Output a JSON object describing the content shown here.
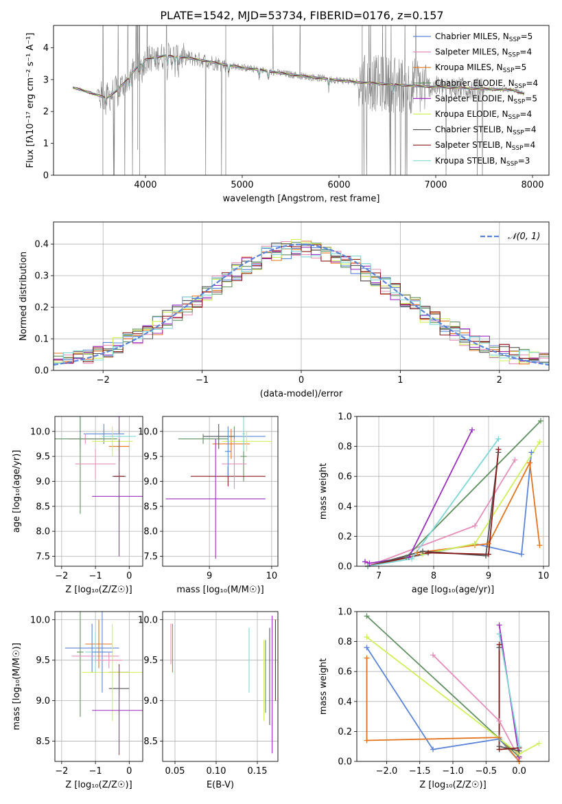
{
  "title": "PLATE=1542, MJD=53734, FIBERID=0176, z=0.157",
  "colors": {
    "Chabrier MILES": "#5b84d8",
    "Salpeter MILES": "#e58fb8",
    "Kroupa MILES": "#e3731d",
    "Chabrier ELODIE": "#5f8f5f",
    "Salpeter ELODIE": "#9b2dbf",
    "Kroupa ELODIE": "#cff05a",
    "Chabrier STELIB": "#555555",
    "Salpeter STELIB": "#8b1a1a",
    "Kroupa STELIB": "#7fd6d6",
    "data": "#808080",
    "normal": "#5b84d8"
  },
  "chart_data": [
    {
      "type": "line",
      "xlabel": "wavelength [Angstrom, rest frame]",
      "ylabel": "Flux [fλ10⁻¹⁷ erg cm⁻² s⁻¹ A⁻¹]",
      "xlim": [
        3050,
        8170
      ],
      "ylim": [
        0,
        4.7
      ],
      "xticks": [
        "4000",
        "5000",
        "6000",
        "7000",
        "8000"
      ],
      "yticks": [
        "0",
        "1",
        "2",
        "3",
        "4"
      ],
      "legend_position": "top-right",
      "legend": [
        "Chabrier MILES, N_SSP=5",
        "Salpeter MILES, N_SSP=4",
        "Kroupa MILES, N_SSP=5",
        "Chabrier ELODIE, N_SSP=4",
        "Salpeter ELODIE, N_SSP=5",
        "Kroupa ELODIE, N_SSP=4",
        "Chabrier STELIB, N_SSP=4",
        "Salpeter STELIB, N_SSP=4",
        "Kroupa STELIB, N_SSP=3"
      ],
      "continuum": {
        "x": [
          3250,
          3400,
          3520,
          3600,
          3700,
          3800,
          3900,
          4000,
          4100,
          4200,
          4400,
          4600,
          4800,
          5000,
          5200,
          5400,
          5600,
          5800,
          6000,
          6200,
          6400,
          6600,
          6800,
          7000,
          7200,
          7400,
          7600,
          7800,
          7920
        ],
        "y": [
          2.75,
          2.62,
          2.5,
          2.42,
          2.65,
          2.95,
          3.35,
          3.62,
          3.7,
          3.75,
          3.7,
          3.6,
          3.48,
          3.38,
          3.3,
          3.2,
          3.12,
          3.05,
          2.98,
          2.92,
          2.88,
          2.84,
          2.8,
          2.77,
          2.75,
          2.72,
          2.7,
          2.67,
          2.55
        ]
      },
      "absorption_lines": [
        3590,
        3720,
        3835,
        3934,
        3969,
        4102,
        4227,
        4304,
        4341,
        4861,
        5175,
        5270,
        5894,
        6563
      ]
    },
    {
      "type": "bar",
      "xlabel": "(data-model)/error",
      "ylabel": "Normed distribution",
      "xlim": [
        -2.5,
        2.5
      ],
      "ylim": [
        0,
        0.47
      ],
      "xticks": [
        "−2",
        "−1",
        "0",
        "1",
        "2"
      ],
      "yticks": [
        "0.0",
        "0.1",
        "0.2",
        "0.3",
        "0.4"
      ],
      "bin_width": 0.1,
      "reference_curve": "N(0,1)",
      "legend": [
        "𝒩(0, 1)"
      ],
      "legend_position": "top-right"
    },
    {
      "type": "scatter",
      "xlabel": "Z [log₁₀(Z/Z☉)]",
      "ylabel": "age  [log₁₀(age/yr)]",
      "xlim": [
        -2.2,
        0.4
      ],
      "ylim": [
        7.3,
        10.3
      ],
      "xticks": [
        "−2",
        "−1",
        "0"
      ],
      "yticks": [
        "7.5",
        "8.0",
        "8.5",
        "9.0",
        "9.5",
        "10.0"
      ]
    },
    {
      "type": "scatter",
      "xlabel": "mass [log₁₀(M/M☉)]",
      "ylabel": "",
      "xlim": [
        8.25,
        10.1
      ],
      "ylim": [
        7.3,
        10.3
      ],
      "xticks": [
        "9",
        "10"
      ],
      "yticks": [
        "7.5",
        "8.0",
        "8.5",
        "9.0",
        "9.5",
        "10.0"
      ]
    },
    {
      "type": "line",
      "xlabel": "age  [log₁₀(age/yr)]",
      "ylabel": "mass weight",
      "xlim": [
        6.6,
        10.1
      ],
      "ylim": [
        0,
        1.0
      ],
      "xticks": [
        "7",
        "8",
        "9",
        "10"
      ],
      "yticks": [
        "0.0",
        "0.2",
        "0.4",
        "0.6",
        "0.8",
        "1.0"
      ],
      "series": [
        {
          "name": "Chabrier MILES",
          "x": [
            6.8,
            8.75,
            9.6,
            9.78
          ],
          "y": [
            0.0,
            0.15,
            0.08,
            0.76
          ]
        },
        {
          "name": "Salpeter MILES",
          "x": [
            6.8,
            8.75,
            9.48
          ],
          "y": [
            0.0,
            0.27,
            0.71
          ]
        },
        {
          "name": "Kroupa MILES",
          "x": [
            6.8,
            7.7,
            8.75,
            9.0,
            9.75,
            9.93
          ],
          "y": [
            0.0,
            0.09,
            0.14,
            0.15,
            0.69,
            0.14
          ]
        },
        {
          "name": "Chabrier ELODIE",
          "x": [
            6.8,
            7.5,
            9.95
          ],
          "y": [
            0.0,
            0.06,
            0.97
          ]
        },
        {
          "name": "Salpeter ELODIE",
          "x": [
            6.75,
            6.83,
            7.55,
            8.7
          ],
          "y": [
            0.03,
            0.02,
            0.06,
            0.91
          ]
        },
        {
          "name": "Kroupa ELODIE",
          "x": [
            6.8,
            7.8,
            8.75,
            9.93
          ],
          "y": [
            0.0,
            0.08,
            0.15,
            0.83
          ]
        },
        {
          "name": "Chabrier STELIB",
          "x": [
            6.8,
            7.8,
            8.95,
            9.18
          ],
          "y": [
            0.0,
            0.1,
            0.07,
            0.76
          ]
        },
        {
          "name": "Salpeter STELIB",
          "x": [
            6.8,
            7.9,
            9.0,
            9.18
          ],
          "y": [
            0.0,
            0.09,
            0.08,
            0.78
          ]
        },
        {
          "name": "Kroupa STELIB",
          "x": [
            6.8,
            7.6,
            9.18
          ],
          "y": [
            0.0,
            0.05,
            0.85
          ]
        }
      ]
    },
    {
      "type": "scatter",
      "xlabel": "Z [log₁₀(Z/Z☉)]",
      "ylabel": "mass [log₁₀(M/M☉)]",
      "xlim": [
        -2.2,
        0.4
      ],
      "ylim": [
        8.25,
        10.1
      ],
      "xticks": [
        "−2",
        "−1",
        "0"
      ],
      "yticks": [
        "8.5",
        "9.0",
        "9.5",
        "10.0"
      ]
    },
    {
      "type": "scatter",
      "xlabel": "E(B-V)",
      "ylabel": "",
      "xlim": [
        0.035,
        0.175
      ],
      "ylim": [
        8.25,
        10.1
      ],
      "xticks": [
        "0.05",
        "0.10",
        "0.15"
      ],
      "yticks": [
        "8.5",
        "9.0",
        "9.5",
        "10.0"
      ]
    },
    {
      "type": "line",
      "xlabel": "Z [log₁₀(Z/Z☉)]",
      "ylabel": "mass weight",
      "xlim": [
        -2.45,
        0.45
      ],
      "ylim": [
        0,
        1.0
      ],
      "xticks": [
        "−2.0",
        "−1.5",
        "−1.0",
        "−0.5",
        "0.0"
      ],
      "yticks": [
        "0.0",
        "0.2",
        "0.4",
        "0.6",
        "0.8",
        "1.0"
      ],
      "series": [
        {
          "name": "Chabrier MILES",
          "x": [
            0.0,
            -0.3,
            -1.3,
            -2.3
          ],
          "y": [
            0.0,
            0.15,
            0.08,
            0.76
          ]
        },
        {
          "name": "Salpeter MILES",
          "x": [
            0.0,
            -0.3,
            -1.3
          ],
          "y": [
            0.02,
            0.27,
            0.71
          ]
        },
        {
          "name": "Kroupa MILES",
          "x": [
            0.0,
            -0.3,
            -2.3,
            -2.3
          ],
          "y": [
            0.0,
            0.16,
            0.14,
            0.69
          ]
        },
        {
          "name": "Chabrier ELODIE",
          "x": [
            0.0,
            -2.3
          ],
          "y": [
            0.03,
            0.97
          ]
        },
        {
          "name": "Salpeter ELODIE",
          "x": [
            0.0,
            -0.3
          ],
          "y": [
            0.03,
            0.91
          ]
        },
        {
          "name": "Kroupa ELODIE",
          "x": [
            0.3,
            0.0,
            -2.3
          ],
          "y": [
            0.12,
            0.05,
            0.83
          ]
        },
        {
          "name": "Chabrier STELIB",
          "x": [
            0.0,
            -0.3,
            -0.3
          ],
          "y": [
            0.07,
            0.1,
            0.76
          ]
        },
        {
          "name": "Salpeter STELIB",
          "x": [
            0.0,
            -0.3,
            -0.3
          ],
          "y": [
            0.09,
            0.08,
            0.78
          ]
        },
        {
          "name": "Kroupa STELIB",
          "x": [
            0.0,
            -0.3
          ],
          "y": [
            0.1,
            0.85
          ]
        }
      ]
    }
  ]
}
